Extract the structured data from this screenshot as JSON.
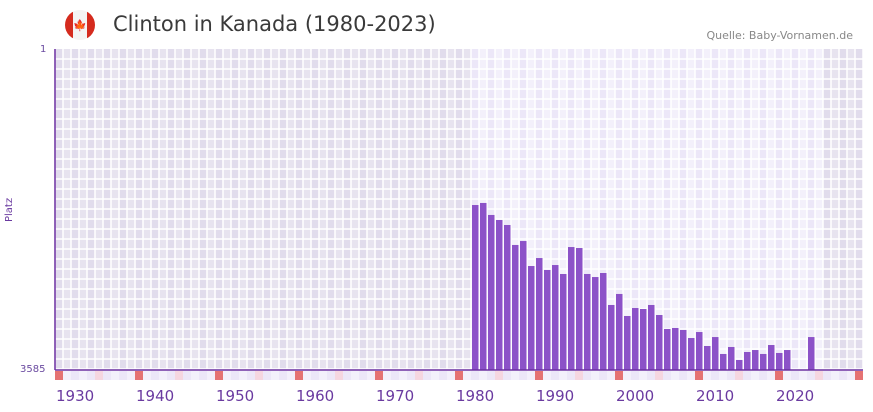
{
  "header": {
    "title": "Clinton in Kanada (1980-2023)",
    "source": "Quelle: Baby-Vornamen.de",
    "flag_icon": "canada-flag-icon"
  },
  "colors": {
    "bar": "#8c52c8",
    "axis": "#6a2fa0",
    "marker": "#e57373",
    "marker_light": "#f5d6e0",
    "bg_out": "#e4e0ee",
    "bg_in": "#f0ecf9"
  },
  "chart_data": {
    "type": "bar",
    "title": "Clinton in Kanada (1980-2023)",
    "xlabel": "",
    "ylabel": "Platz",
    "y_reversed": true,
    "ylim": [
      1,
      3585
    ],
    "y_ticks": [
      "1",
      "3585"
    ],
    "xlim": [
      1928,
      2028
    ],
    "highlight_range": [
      1980,
      2023
    ],
    "x_ticks": [
      1930,
      1940,
      1950,
      1960,
      1970,
      1980,
      1990,
      2000,
      2010,
      2020
    ],
    "x": [
      1980,
      1981,
      1982,
      1983,
      1984,
      1985,
      1986,
      1987,
      1988,
      1989,
      1990,
      1991,
      1992,
      1993,
      1994,
      1995,
      1996,
      1997,
      1998,
      1999,
      2000,
      2001,
      2002,
      2003,
      2004,
      2005,
      2006,
      2007,
      2008,
      2009,
      2010,
      2011,
      2012,
      2013,
      2014,
      2015,
      2016,
      2017,
      2018,
      2019,
      2020,
      2021,
      2022,
      2023
    ],
    "values": [
      1743,
      1720,
      1854,
      1910,
      1966,
      2189,
      2145,
      2424,
      2335,
      2468,
      2413,
      2513,
      2212,
      2223,
      2513,
      2547,
      2502,
      2859,
      2736,
      2982,
      2893,
      2904,
      2859,
      2971,
      3127,
      3116,
      3138,
      3228,
      3161,
      3317,
      3217,
      3406,
      3328,
      3473,
      3384,
      3362,
      3406,
      3306,
      3395,
      3362,
      null,
      null,
      3217,
      null
    ]
  }
}
